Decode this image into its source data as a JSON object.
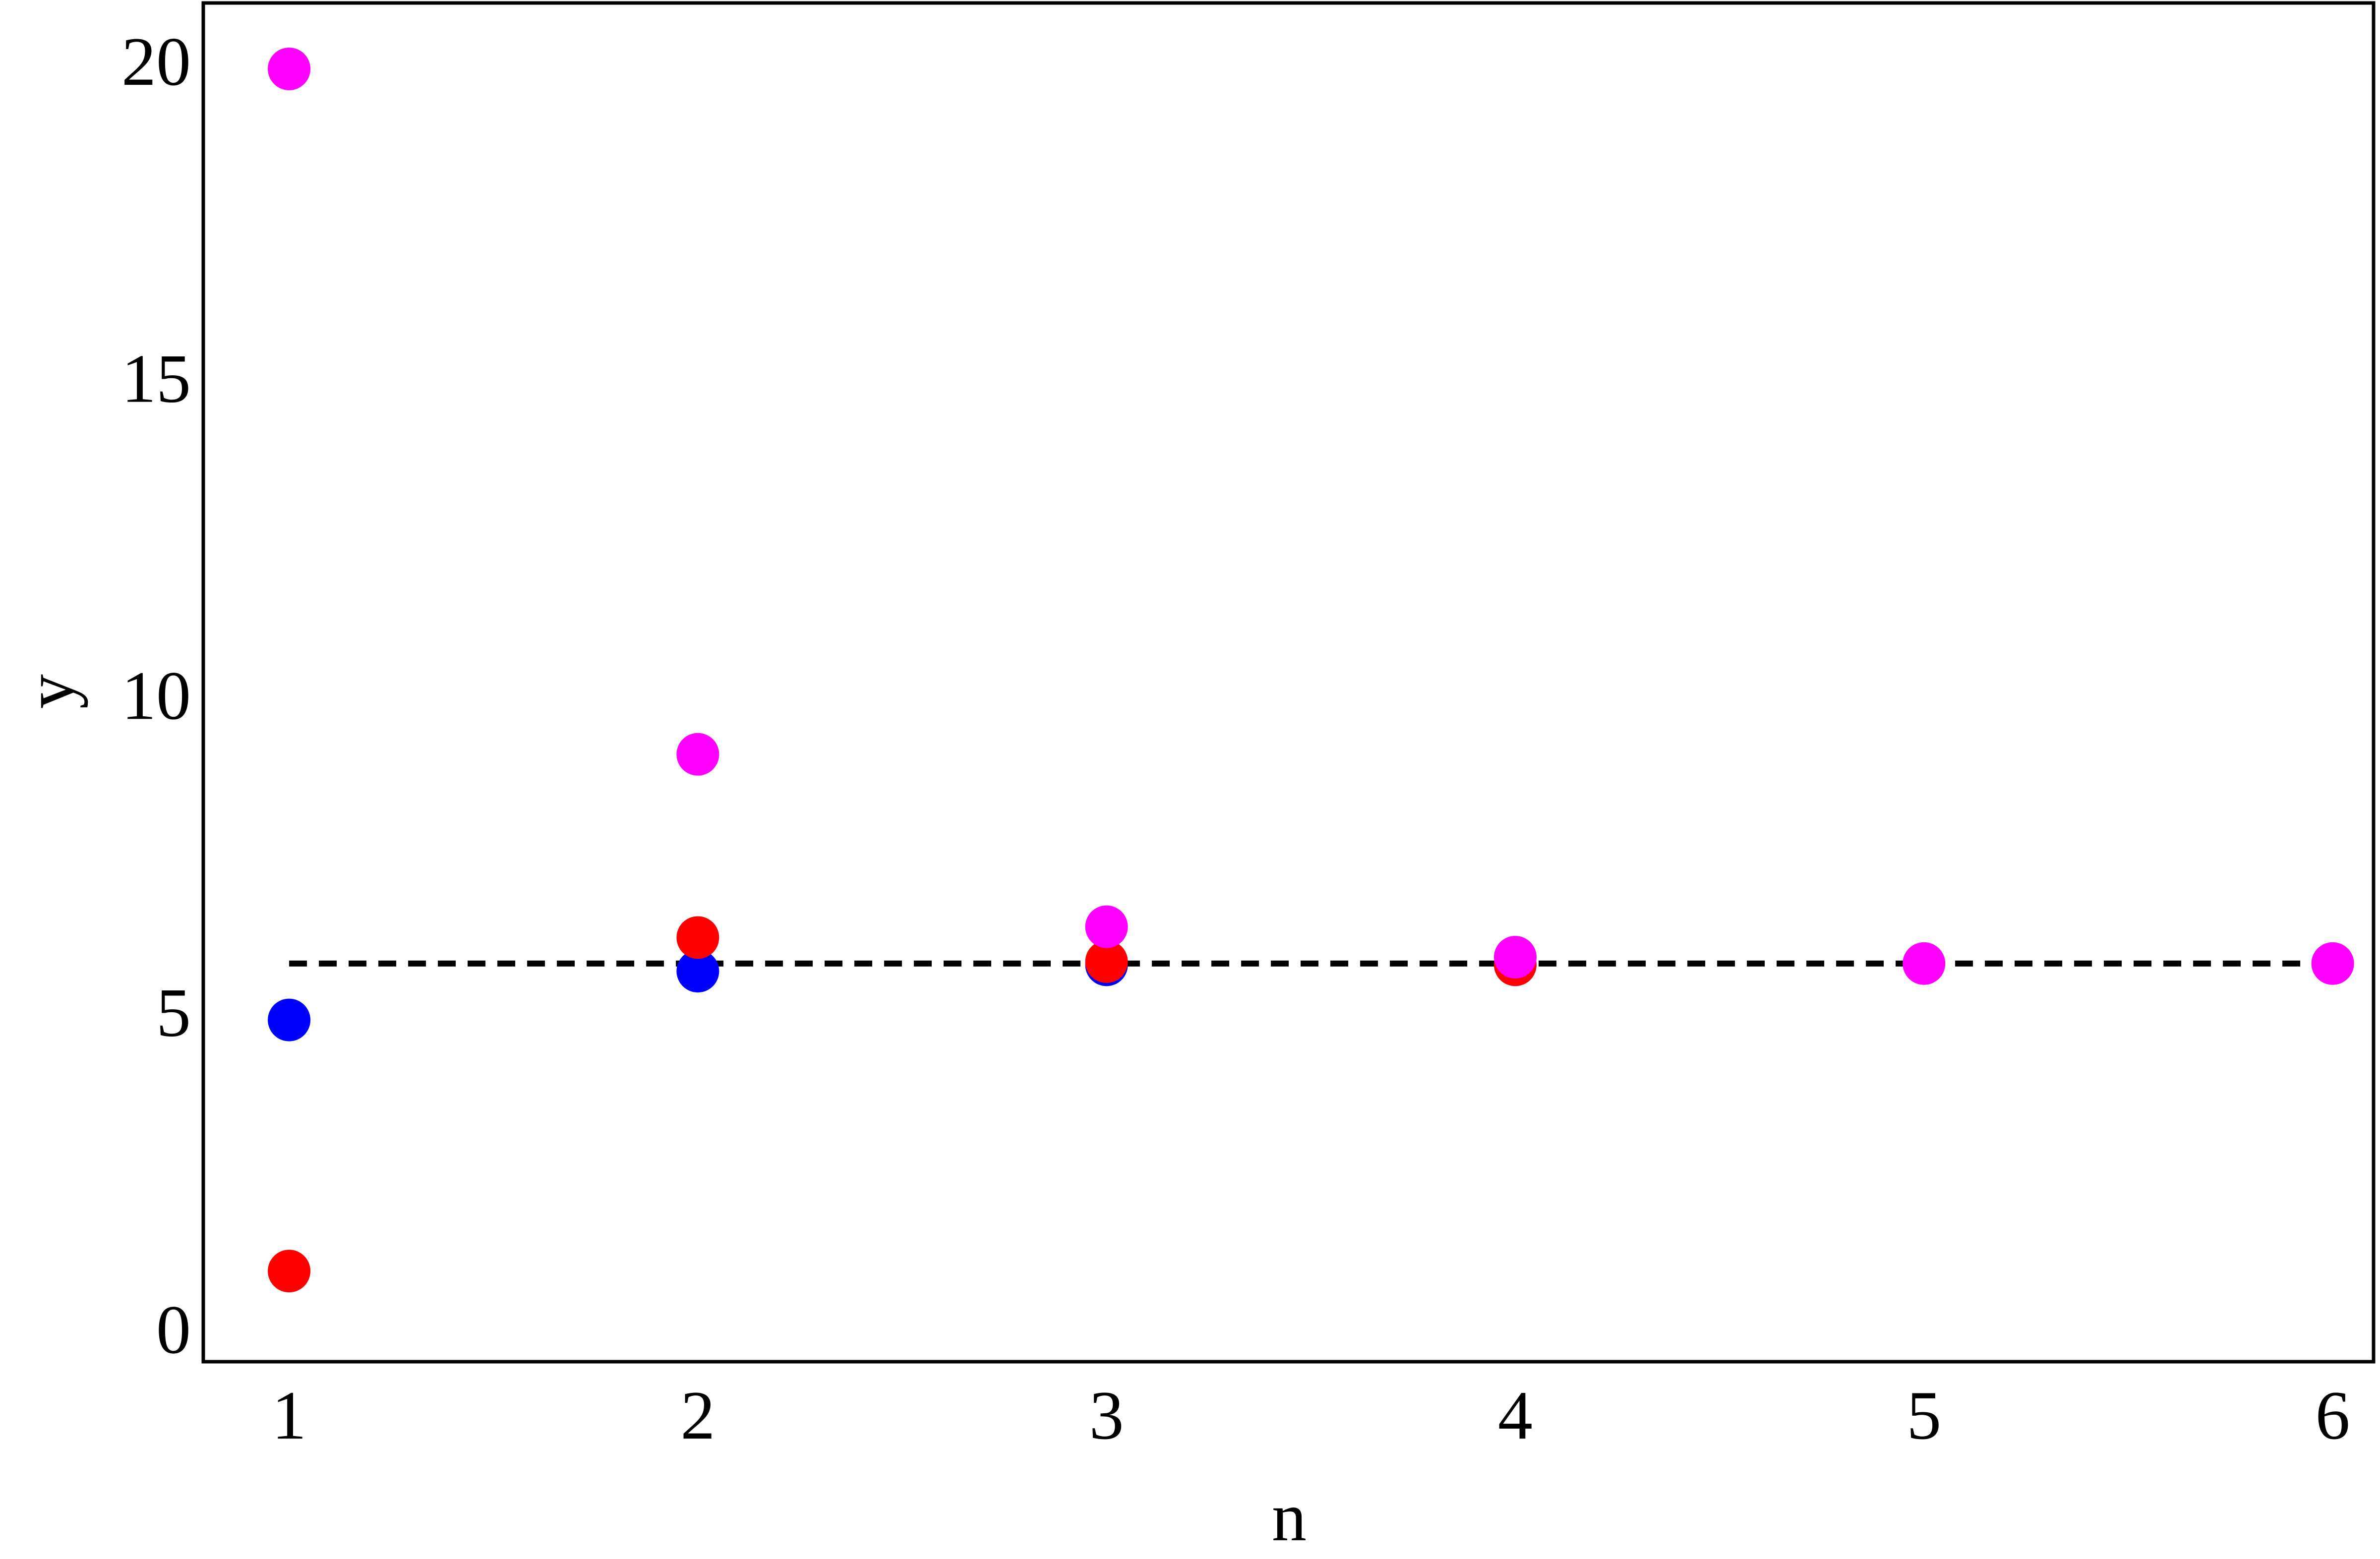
{
  "chart_data": {
    "type": "scatter",
    "x_label": "n",
    "y_label": "y",
    "series": [
      {
        "color": "#0000ff",
        "x": [
          1,
          2,
          3
        ],
        "values": [
          5.0,
          5.77,
          5.87
        ]
      },
      {
        "color": "#ff0000",
        "x": [
          1,
          2,
          3,
          4
        ],
        "values": [
          1.04,
          6.3,
          5.92,
          5.87
        ]
      },
      {
        "color": "#ff00ff",
        "x": [
          1,
          2,
          3,
          4,
          5,
          6
        ],
        "values": [
          20,
          9.19,
          6.47,
          5.99,
          5.89,
          5.89
        ]
      }
    ],
    "reference_line": {
      "x": [
        1,
        6
      ],
      "values": [
        5.89,
        5.89
      ],
      "color": "#000000",
      "dashed": true
    },
    "xlim": [
      0.79,
      6.1
    ],
    "xticks": [
      1,
      2,
      3,
      4,
      5,
      6
    ],
    "ylim": [
      -0.39,
      21.04
    ],
    "yticks": [
      0,
      5,
      10,
      15,
      20
    ],
    "grid": false
  }
}
